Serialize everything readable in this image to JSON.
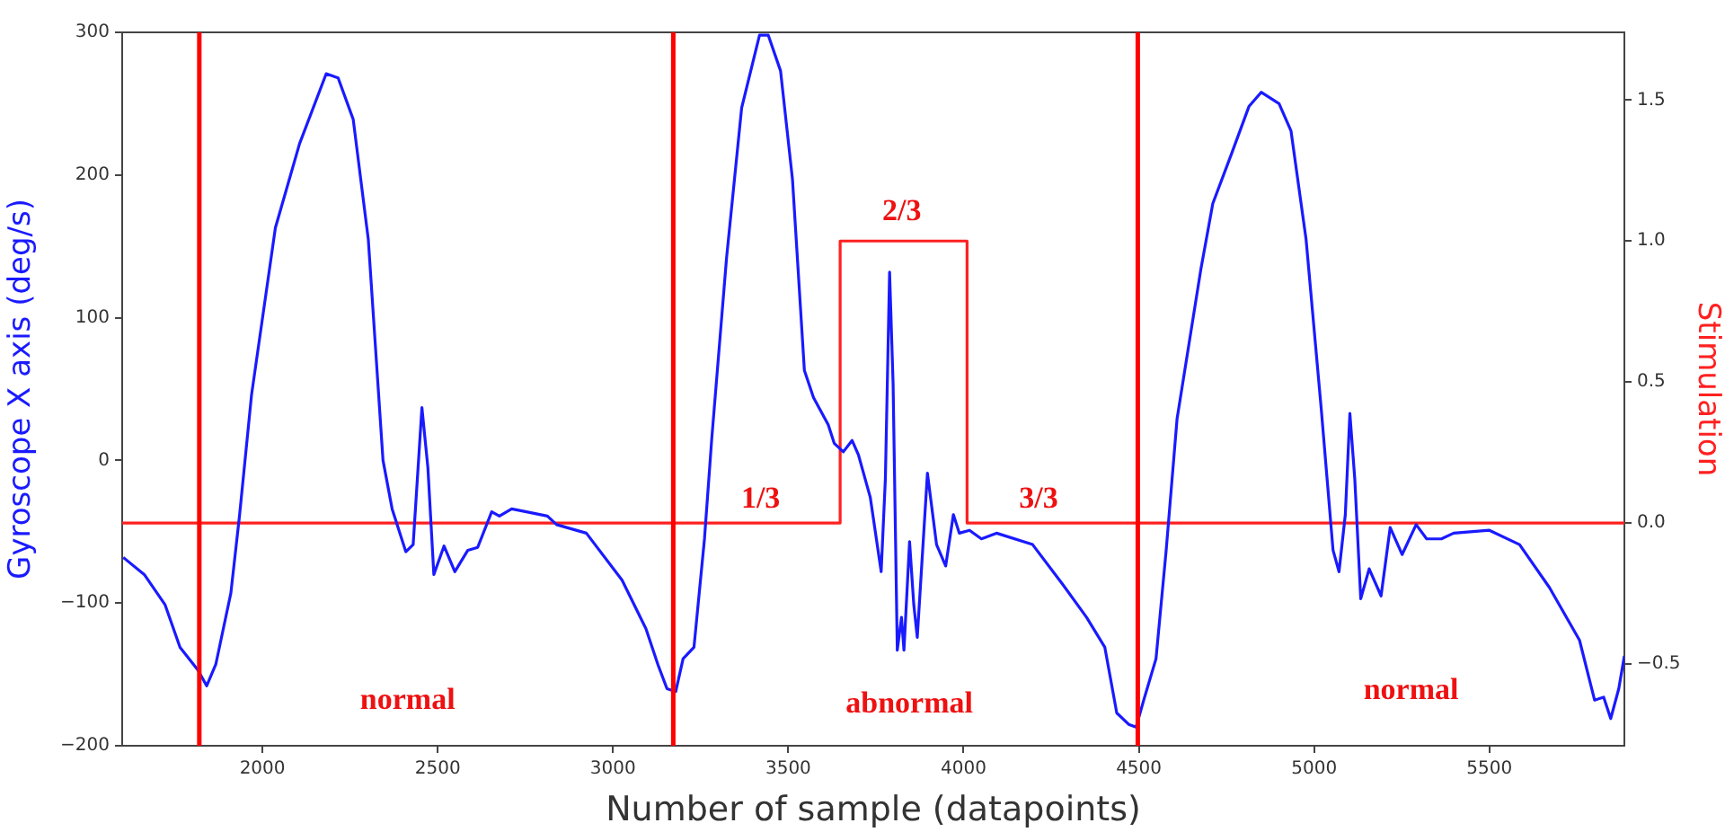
{
  "chart_data": {
    "type": "line",
    "xlabel": "Number of sample (datapoints)",
    "ylabel": "Gyroscope X axis (deg/s)",
    "y2label": "Stimulation",
    "xlim": [
      1600,
      5885
    ],
    "xticks": [
      2000,
      2500,
      3000,
      3500,
      4000,
      4500,
      5000,
      5500
    ],
    "ylim": [
      -200,
      300
    ],
    "yticks": [
      {
        "value": -200,
        "label": "−200"
      },
      {
        "value": -100,
        "label": "−100"
      },
      0,
      100,
      200,
      300
    ],
    "y2lim": [
      -0.79,
      1.74
    ],
    "y2ticks": [
      {
        "value": -0.5,
        "label": "−0.5"
      },
      {
        "value": 0,
        "label": "0.0"
      },
      0.5,
      {
        "value": 1,
        "label": "1.0"
      },
      1.5
    ],
    "grid": false,
    "legend": false,
    "marker": "none",
    "line_style": "solid",
    "series": [
      {
        "color": "#1a1aff",
        "x": [
          1603,
          1663,
          1722,
          1765,
          1816,
          1841,
          1867,
          1910,
          1935,
          1969,
          2037,
          2106,
          2182,
          2216,
          2259,
          2302,
          2344,
          2370,
          2409,
          2430,
          2455,
          2472,
          2489,
          2518,
          2549,
          2586,
          2614,
          2654,
          2676,
          2711,
          2753,
          2813,
          2839,
          2924,
          3026,
          3094,
          3128,
          3154,
          3179,
          3200,
          3231,
          3261,
          3282,
          3324,
          3367,
          3418,
          3443,
          3478,
          3512,
          3546,
          3572,
          3614,
          3631,
          3657,
          3682,
          3700,
          3734,
          3765,
          3777,
          3789,
          3799,
          3811,
          3823,
          3830,
          3846,
          3858,
          3868,
          3897,
          3923,
          3949,
          3971,
          3988,
          4017,
          4051,
          4094,
          4197,
          4283,
          4351,
          4403,
          4437,
          4471,
          4492,
          4514,
          4549,
          4578,
          4609,
          4677,
          4711,
          4763,
          4814,
          4849,
          4900,
          4934,
          4977,
          5020,
          5054,
          5071,
          5089,
          5102,
          5116,
          5133,
          5157,
          5191,
          5217,
          5251,
          5291,
          5321,
          5363,
          5398,
          5500,
          5586,
          5671,
          5757,
          5800,
          5826,
          5846,
          5869,
          5885
        ],
        "values": [
          -68,
          -80,
          -101,
          -131,
          -147,
          -158,
          -143,
          -93,
          -38,
          46,
          163,
          222,
          271,
          268,
          239,
          155,
          0,
          -34,
          -64,
          -59,
          37,
          -5,
          -80,
          -60,
          -78,
          -63,
          -61,
          -36,
          -39,
          -34,
          -36,
          -39,
          -45,
          -51,
          -84,
          -118,
          -143,
          -160,
          -162,
          -139,
          -131,
          -55,
          16,
          142,
          247,
          298,
          298,
          273,
          197,
          63,
          44,
          25,
          12,
          6,
          14,
          4,
          -26,
          -78,
          -13,
          132,
          54,
          -133,
          -110,
          -133,
          -57,
          -101,
          -124,
          -9,
          -59,
          -74,
          -38,
          -51,
          -49,
          -55,
          -51,
          -59,
          -87,
          -110,
          -131,
          -177,
          -185,
          -187,
          -168,
          -139,
          -63,
          29,
          134,
          180,
          214,
          248,
          258,
          250,
          231,
          155,
          37,
          -63,
          -78,
          -38,
          33,
          -13,
          -97,
          -76,
          -95,
          -47,
          -66,
          -45,
          -55,
          -55,
          -51,
          -49,
          -59,
          -89,
          -126,
          -168,
          -166,
          -181,
          -160,
          -137
        ]
      },
      {
        "color": "#ff2020",
        "axis": "y2",
        "x": [
          1600,
          3648,
          3648,
          4010,
          4010,
          5885
        ],
        "values": [
          0,
          0,
          1,
          1,
          0,
          0
        ]
      }
    ],
    "ref_lines": [
      {
        "axis": "x",
        "value": 1820,
        "color": "#ff0000"
      },
      {
        "axis": "x",
        "value": 3172,
        "color": "#ff0000"
      },
      {
        "axis": "x",
        "value": 4497,
        "color": "#ff0000"
      }
    ],
    "annotations": [
      "normal",
      "abnormal",
      "normal",
      "1/3",
      "2/3",
      "3/3"
    ]
  }
}
